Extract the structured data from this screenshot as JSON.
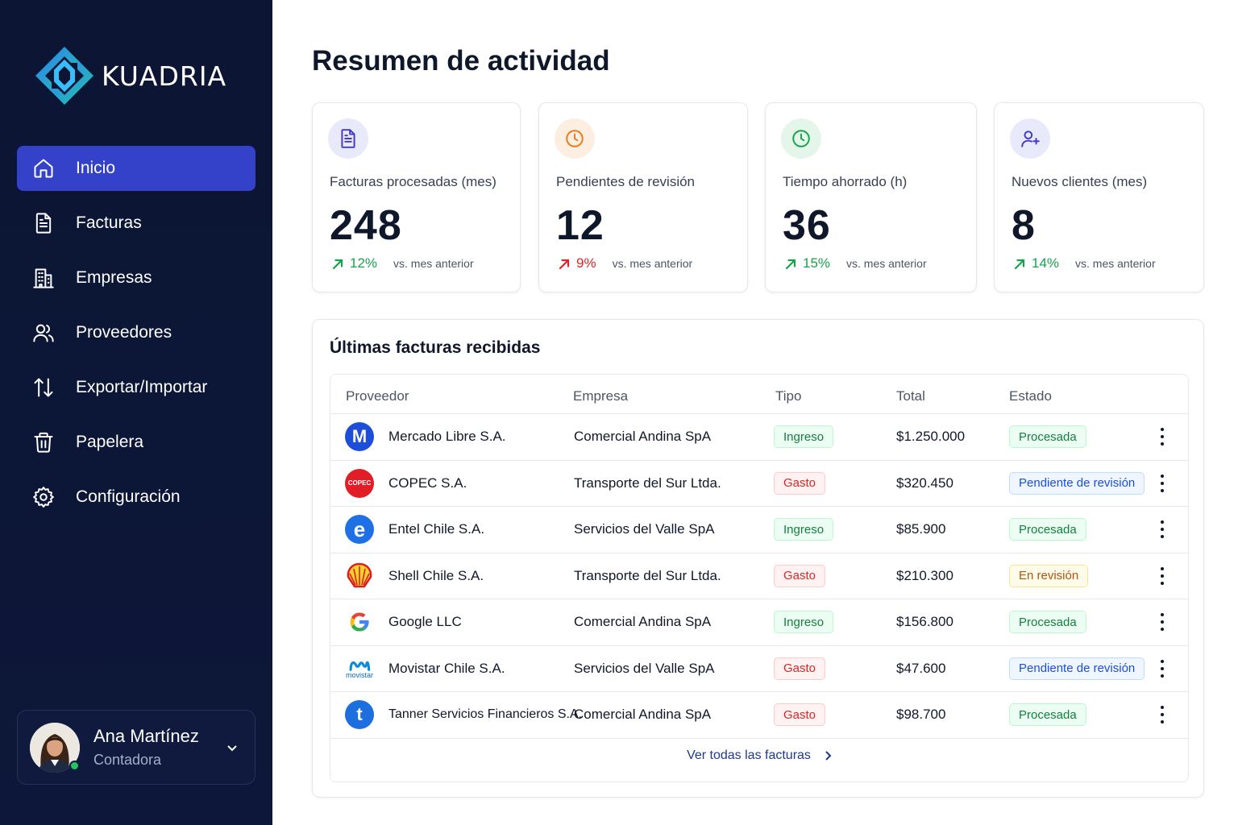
{
  "brand": {
    "name": "KUADRIA"
  },
  "sidebar": {
    "items": [
      {
        "label": "Inicio",
        "icon": "home-icon",
        "active": true
      },
      {
        "label": "Facturas",
        "icon": "document-icon"
      },
      {
        "label": "Empresas",
        "icon": "building-icon"
      },
      {
        "label": "Proveedores",
        "icon": "users-icon"
      },
      {
        "label": "Exportar/Importar",
        "icon": "arrows-up-down-icon"
      },
      {
        "label": "Papelera",
        "icon": "trash-icon"
      },
      {
        "label": "Configuración",
        "icon": "gear-icon"
      }
    ],
    "user": {
      "name": "Ana Martínez",
      "role": "Contadora",
      "status": "online"
    }
  },
  "main": {
    "title": "Resumen de actividad",
    "stats": [
      {
        "label": "Facturas procesadas (mes)",
        "value": "248",
        "change": "12%",
        "trend": "up",
        "comparison": "vs. mes anterior",
        "icon": "document-icon",
        "color": "#4338ca",
        "bg": "#e8eafc",
        "change_color": "#16a34a"
      },
      {
        "label": "Pendientes de revisión",
        "value": "12",
        "change": "9%",
        "trend": "up",
        "comparison": "vs. mes anterior",
        "icon": "clock-icon",
        "color": "#ea7a17",
        "bg": "#fdeee2",
        "change_color": "#dc2626"
      },
      {
        "label": "Tiempo ahorrado (h)",
        "value": "36",
        "change": "15%",
        "trend": "up",
        "comparison": "vs. mes anterior",
        "icon": "clock-icon",
        "color": "#16a34a",
        "bg": "#e4f6ea",
        "change_color": "#16a34a"
      },
      {
        "label": "Nuevos clientes (mes)",
        "value": "8",
        "change": "14%",
        "trend": "up",
        "comparison": "vs. mes anterior",
        "icon": "user-plus-icon",
        "color": "#4338ca",
        "bg": "#e8eafc",
        "change_color": "#16a34a"
      }
    ],
    "invoices": {
      "title": "Últimas facturas recibidas",
      "columns": [
        "Proveedor",
        "Empresa",
        "Tipo",
        "Total",
        "Estado"
      ],
      "rows": [
        {
          "provider": "Mercado Libre S.A.",
          "company": "Comercial Andina SpA",
          "type": "Ingreso",
          "total": "$1.250.000",
          "status": "Procesada",
          "logo": "M",
          "logo_name": "mercado-libre-logo",
          "logo_color": "#1d4ed8"
        },
        {
          "provider": "COPEC S.A.",
          "company": "Transporte del Sur Ltda.",
          "type": "Gasto",
          "total": "$320.450",
          "status": "Pendiente de revisión",
          "logo": "COPEC",
          "logo_name": "copec-logo",
          "logo_color": "#e11d27"
        },
        {
          "provider": "Entel Chile S.A.",
          "company": "Servicios del Valle SpA",
          "type": "Ingreso",
          "total": "$85.900",
          "status": "Procesada",
          "logo": "e",
          "logo_name": "entel-logo",
          "logo_color": "#1f6fe5"
        },
        {
          "provider": "Shell Chile S.A.",
          "company": "Transporte del Sur Ltda.",
          "type": "Gasto",
          "total": "$210.300",
          "status": "En revisión",
          "logo": "",
          "logo_name": "shell-logo",
          "logo_color": "#fbbf24"
        },
        {
          "provider": "Google LLC",
          "company": "Comercial Andina SpA",
          "type": "Ingreso",
          "total": "$156.800",
          "status": "Procesada",
          "logo": "G",
          "logo_name": "google-logo",
          "logo_color": "#ffffff"
        },
        {
          "provider": "Movistar Chile S.A.",
          "company": "Servicios del Valle SpA",
          "type": "Gasto",
          "total": "$47.600",
          "status": "Pendiente de revisión",
          "logo": "movistar",
          "logo_name": "movistar-logo",
          "logo_color": "#ffffff"
        },
        {
          "provider": "Tanner Servicios Financieros S.A.",
          "company": "Comercial Andina SpA",
          "type": "Gasto",
          "total": "$98.700",
          "status": "Procesada",
          "logo": "t",
          "logo_name": "tanner-logo",
          "logo_color": "#1d6fe0"
        }
      ],
      "view_all": "Ver todas las facturas"
    }
  }
}
